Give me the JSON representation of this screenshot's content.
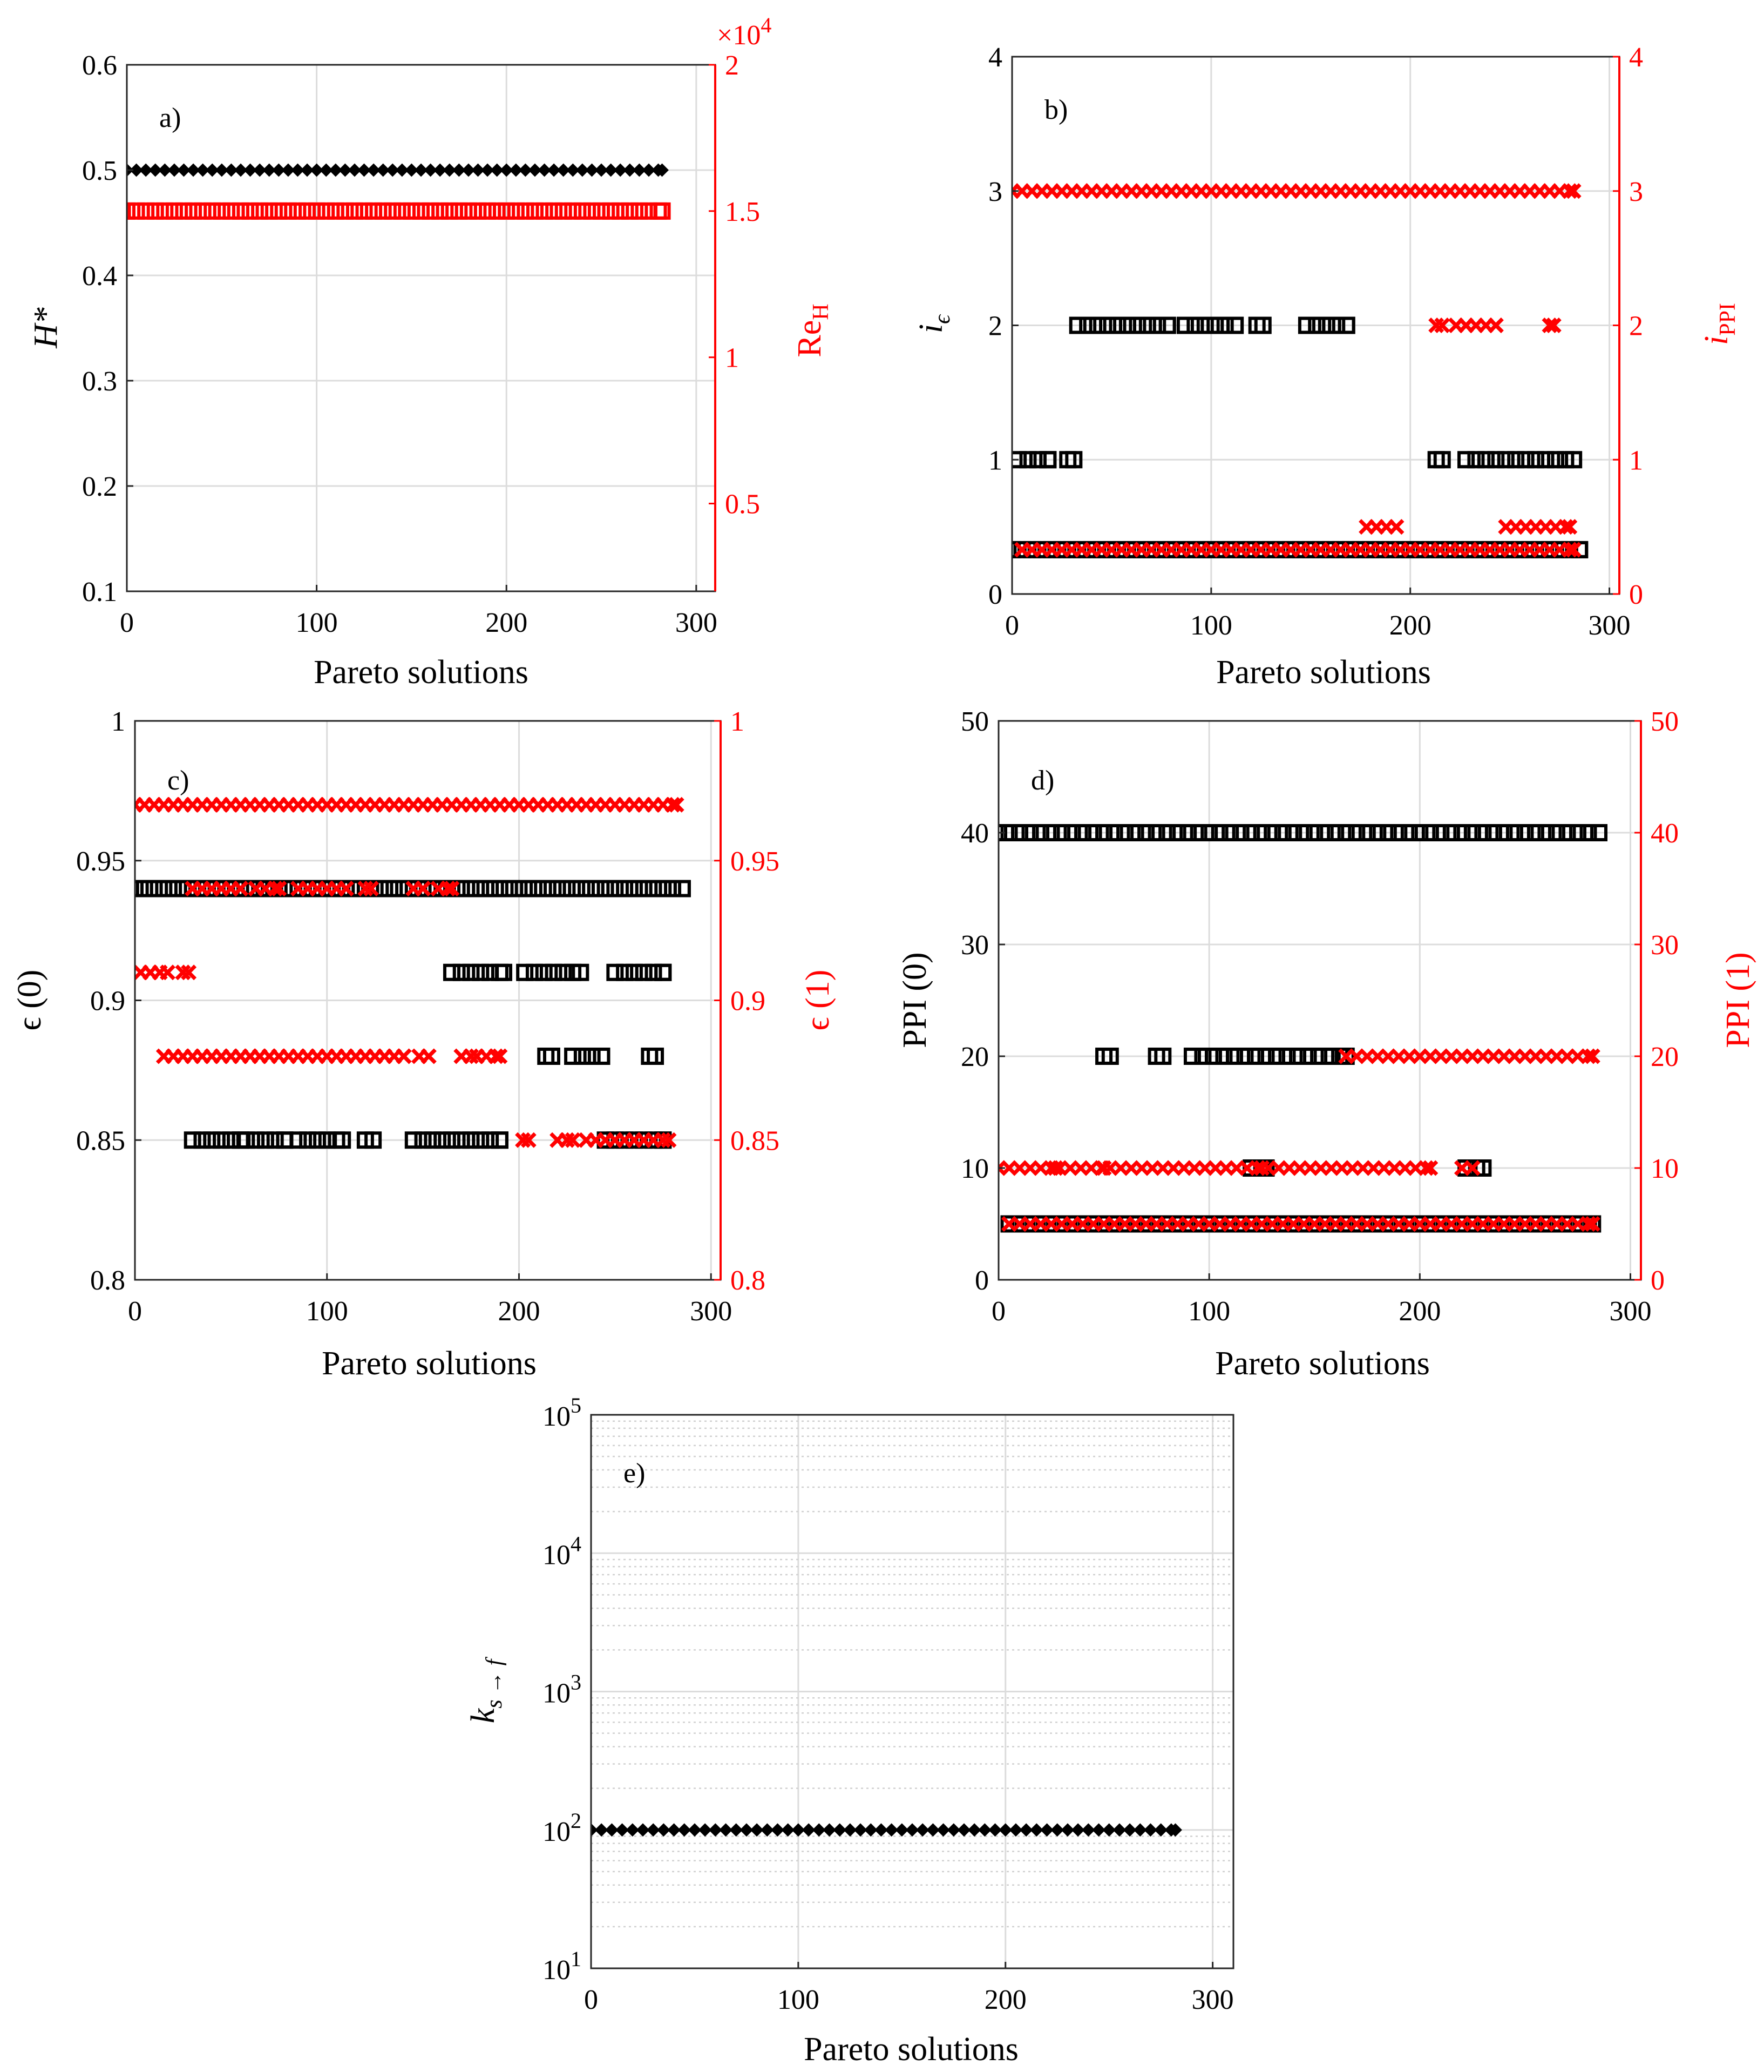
{
  "colors": {
    "left": "#000000",
    "right": "#ff0000"
  },
  "chart_data": [
    {
      "id": "a",
      "type": "scatter",
      "panel_label": "a)",
      "xlabel": "Pareto solutions",
      "xlim": [
        0,
        310
      ],
      "xticks": [
        0,
        100,
        200,
        300
      ],
      "ylabel": "H*",
      "ylim": [
        0.1,
        0.6
      ],
      "yticks": [
        "0.1",
        "0.2",
        "0.3",
        "0.4",
        "0.5",
        "0.6"
      ],
      "y2label": "Re",
      "y2label_sub": "H",
      "y2lim": [
        2000,
        20000
      ],
      "y2ticks": [
        "0.5",
        "1",
        "1.5",
        "2"
      ],
      "y2tick_values": [
        5000,
        10000,
        15000,
        20000
      ],
      "y2_exponent_base": "×10",
      "y2_exponent_power": "4",
      "series": [
        {
          "name": "H*",
          "axis": "left",
          "marker": "diamond",
          "runs": [
            {
              "y": 0.5,
              "from": 0,
              "to": 282
            }
          ]
        },
        {
          "name": "Re_H",
          "axis": "right",
          "marker": "square",
          "runs": [
            {
              "y": 15000,
              "from": 0,
              "to": 282
            }
          ]
        }
      ]
    },
    {
      "id": "b",
      "type": "scatter",
      "panel_label": "b)",
      "xlabel": "Pareto solutions",
      "xlim": [
        0,
        305
      ],
      "xticks": [
        0,
        100,
        200,
        300
      ],
      "ylabel": "i",
      "ylabel_sub": "ϵ",
      "ylim": [
        0,
        4
      ],
      "yticks": [
        "0",
        "1",
        "2",
        "3",
        "4"
      ],
      "y2label": "i",
      "y2label_sub": "PPI",
      "y2lim": [
        0,
        4
      ],
      "y2ticks": [
        "0",
        "1",
        "2",
        "3",
        "4"
      ],
      "y2tick_values": [
        0,
        1,
        2,
        3,
        4
      ],
      "series": [
        {
          "name": "i_eps",
          "axis": "left",
          "marker": "square",
          "runs": [
            {
              "y": 1,
              "from": 3,
              "to": 18
            },
            {
              "y": 1,
              "from": 28,
              "to": 31
            },
            {
              "y": 2,
              "from": 33,
              "to": 58
            },
            {
              "y": 2,
              "from": 63,
              "to": 78
            },
            {
              "y": 2,
              "from": 87,
              "to": 112
            },
            {
              "y": 2,
              "from": 123,
              "to": 126
            },
            {
              "y": 2,
              "from": 148,
              "to": 153
            },
            {
              "y": 2,
              "from": 158,
              "to": 168
            },
            {
              "y": 1,
              "from": 213,
              "to": 216
            },
            {
              "y": 1,
              "from": 228,
              "to": 282
            },
            {
              "y": 0.33,
              "from": 0,
              "to": 285
            }
          ]
        },
        {
          "name": "i_PPI",
          "axis": "right",
          "marker": "x",
          "runs": [
            {
              "y": 3,
              "from": 0,
              "to": 282
            },
            {
              "y": 2,
              "from": 213,
              "to": 216
            },
            {
              "y": 2,
              "from": 223,
              "to": 228
            },
            {
              "y": 2,
              "from": 233,
              "to": 243
            },
            {
              "y": 2,
              "from": 270,
              "to": 272
            },
            {
              "y": 0.5,
              "from": 178,
              "to": 183
            },
            {
              "y": 0.5,
              "from": 188,
              "to": 193
            },
            {
              "y": 0.5,
              "from": 248,
              "to": 258
            },
            {
              "y": 0.5,
              "from": 263,
              "to": 280
            },
            {
              "y": 0.33,
              "from": 5,
              "to": 282
            }
          ]
        }
      ]
    },
    {
      "id": "c",
      "type": "scatter",
      "panel_label": "c)",
      "xlabel": "Pareto solutions",
      "xlim": [
        0,
        305
      ],
      "xticks": [
        0,
        100,
        200,
        300
      ],
      "ylabel": "ϵ (0)",
      "ylim": [
        0.8,
        1.0
      ],
      "yticks": [
        "0.8",
        "0.85",
        "0.9",
        "0.95",
        "1"
      ],
      "y2label": "ϵ (1)",
      "y2lim": [
        0.8,
        1.0
      ],
      "y2ticks": [
        "0.8",
        "0.85",
        "0.9",
        "0.95",
        "1"
      ],
      "y2tick_values": [
        0.8,
        0.85,
        0.9,
        0.95,
        1.0
      ],
      "series": [
        {
          "name": "eps0",
          "axis": "left",
          "marker": "square",
          "runs": [
            {
              "y": 0.94,
              "from": 0,
              "to": 285
            },
            {
              "y": 0.91,
              "from": 165,
              "to": 192
            },
            {
              "y": 0.91,
              "from": 203,
              "to": 232
            },
            {
              "y": 0.91,
              "from": 250,
              "to": 275
            },
            {
              "y": 0.88,
              "from": 214,
              "to": 217
            },
            {
              "y": 0.88,
              "from": 228,
              "to": 243
            },
            {
              "y": 0.88,
              "from": 268,
              "to": 271
            },
            {
              "y": 0.85,
              "from": 30,
              "to": 55
            },
            {
              "y": 0.85,
              "from": 58,
              "to": 78
            },
            {
              "y": 0.85,
              "from": 85,
              "to": 108
            },
            {
              "y": 0.85,
              "from": 120,
              "to": 124
            },
            {
              "y": 0.85,
              "from": 145,
              "to": 190
            },
            {
              "y": 0.85,
              "from": 245,
              "to": 275
            }
          ]
        },
        {
          "name": "eps1",
          "axis": "right",
          "marker": "x",
          "runs": [
            {
              "y": 0.97,
              "from": 0,
              "to": 282
            },
            {
              "y": 0.94,
              "from": 30,
              "to": 55
            },
            {
              "y": 0.94,
              "from": 63,
              "to": 75
            },
            {
              "y": 0.94,
              "from": 85,
              "to": 110
            },
            {
              "y": 0.94,
              "from": 120,
              "to": 123
            },
            {
              "y": 0.94,
              "from": 145,
              "to": 150
            },
            {
              "y": 0.94,
              "from": 158,
              "to": 165
            },
            {
              "y": 0.91,
              "from": 3,
              "to": 17
            },
            {
              "y": 0.91,
              "from": 25,
              "to": 28
            },
            {
              "y": 0.88,
              "from": 15,
              "to": 140
            },
            {
              "y": 0.88,
              "from": 148,
              "to": 153
            },
            {
              "y": 0.88,
              "from": 170,
              "to": 178
            },
            {
              "y": 0.88,
              "from": 183,
              "to": 190
            },
            {
              "y": 0.85,
              "from": 202,
              "to": 205
            },
            {
              "y": 0.85,
              "from": 220,
              "to": 228
            },
            {
              "y": 0.85,
              "from": 235,
              "to": 278
            }
          ]
        }
      ]
    },
    {
      "id": "d",
      "type": "scatter",
      "panel_label": "d)",
      "xlabel": "Pareto solutions",
      "xlim": [
        0,
        305
      ],
      "xticks": [
        0,
        100,
        200,
        300
      ],
      "ylabel": "PPI (0)",
      "ylim": [
        0,
        50
      ],
      "yticks": [
        "0",
        "10",
        "20",
        "30",
        "40",
        "50"
      ],
      "y2label": "PPI (1)",
      "y2lim": [
        0,
        50
      ],
      "y2ticks": [
        "0",
        "10",
        "20",
        "30",
        "40",
        "50"
      ],
      "y2tick_values": [
        0,
        10,
        20,
        30,
        40,
        50
      ],
      "series": [
        {
          "name": "PPI0",
          "axis": "left",
          "marker": "square",
          "runs": [
            {
              "y": 40,
              "from": 0,
              "to": 285
            },
            {
              "y": 20,
              "from": 50,
              "to": 53
            },
            {
              "y": 20,
              "from": 75,
              "to": 78
            },
            {
              "y": 20,
              "from": 92,
              "to": 165
            },
            {
              "y": 10,
              "from": 120,
              "to": 127
            },
            {
              "y": 10,
              "from": 222,
              "to": 230
            },
            {
              "y": 5,
              "from": 5,
              "to": 282
            }
          ]
        },
        {
          "name": "PPI1",
          "axis": "right",
          "marker": "x",
          "runs": [
            {
              "y": 20,
              "from": 165,
              "to": 282
            },
            {
              "y": 10,
              "from": 0,
              "to": 27
            },
            {
              "y": 10,
              "from": 29,
              "to": 50
            },
            {
              "y": 10,
              "from": 53,
              "to": 125
            },
            {
              "y": 10,
              "from": 128,
              "to": 205
            },
            {
              "y": 10,
              "from": 220,
              "to": 225
            },
            {
              "y": 5,
              "from": 5,
              "to": 282
            }
          ]
        }
      ]
    },
    {
      "id": "e",
      "type": "scatter",
      "panel_label": "e)",
      "xlabel": "Pareto solutions",
      "xlim": [
        0,
        310
      ],
      "xticks": [
        0,
        100,
        200,
        300
      ],
      "ylabel": "k",
      "ylabel_sub": "s → f",
      "yscale": "log",
      "ylim": [
        10,
        100000
      ],
      "yticks_base": "10",
      "yticks_exp": [
        "1",
        "2",
        "3",
        "4",
        "5"
      ],
      "series": [
        {
          "name": "k_s_to_f",
          "axis": "left",
          "marker": "diamond",
          "runs": [
            {
              "y": 100,
              "from": 0,
              "to": 282
            }
          ]
        }
      ]
    }
  ]
}
